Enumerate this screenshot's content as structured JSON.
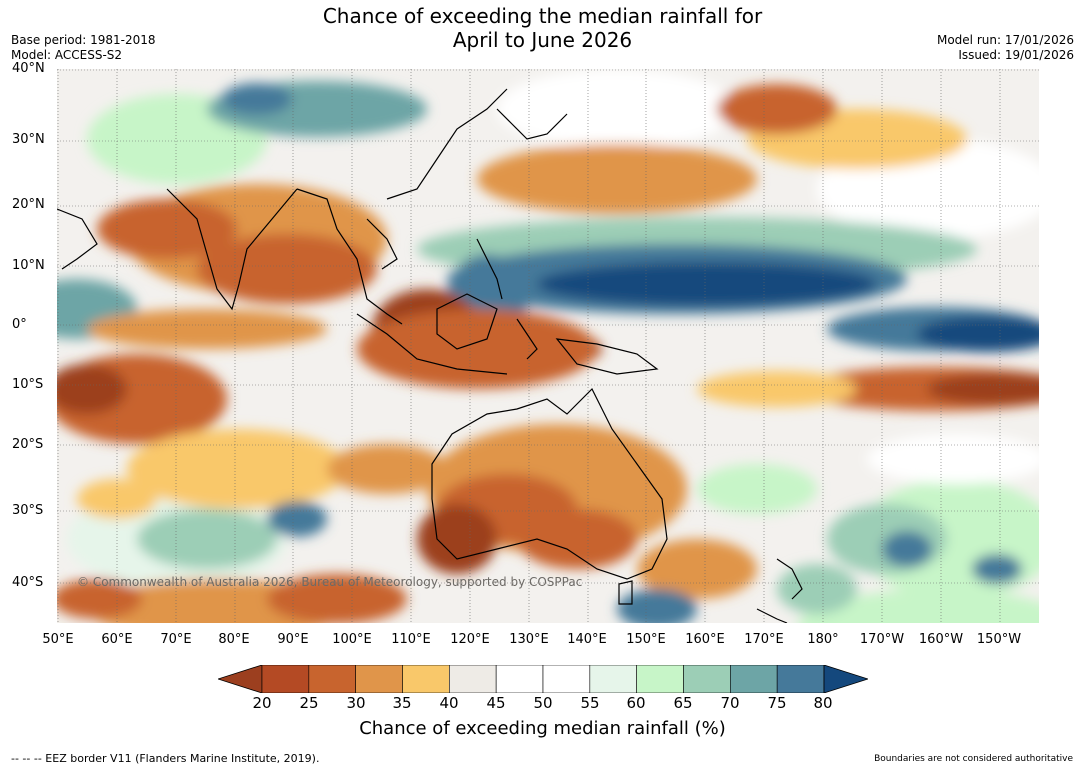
{
  "title": {
    "line1": "Chance of exceeding the median rainfall for",
    "line2": "April to June 2026"
  },
  "meta_left": {
    "base_period": "Base period: 1981-2018",
    "model": "Model: ACCESS-S2"
  },
  "meta_right": {
    "model_run": "Model run: 17/01/2026",
    "issued": "Issued: 19/01/2026"
  },
  "lat_labels": [
    "40°N",
    "30°N",
    "20°N",
    "10°N",
    "0°",
    "10°S",
    "20°S",
    "30°S",
    "40°S"
  ],
  "lon_labels": [
    "50°E",
    "60°E",
    "70°E",
    "80°E",
    "90°E",
    "100°E",
    "110°E",
    "120°E",
    "130°E",
    "140°E",
    "150°E",
    "160°E",
    "170°E",
    "180°",
    "170°W",
    "160°W",
    "150°W"
  ],
  "colorbar": {
    "ticks": [
      "20",
      "25",
      "30",
      "35",
      "40",
      "45",
      "50",
      "55",
      "60",
      "65",
      "70",
      "75",
      "80"
    ],
    "colors": [
      "#9c3f1f",
      "#b44a24",
      "#c8642e",
      "#e0954a",
      "#f9c86a",
      "#eeebe6",
      "#ffffff",
      "#ffffff",
      "#e6f5ea",
      "#c7f5c8",
      "#9cceb6",
      "#6da5a6",
      "#45799a",
      "#14487d"
    ],
    "label": "Chance of exceeding median rainfall (%)"
  },
  "watermark": "© Commonwealth of Australia 2026, Bureau of Meteorology, supported by COSPPac",
  "footer_left": "--  --  -- EEZ border V11 (Flanders Marine Institute, 2019).",
  "footer_right": "Boundaries are not considered authoritative"
}
